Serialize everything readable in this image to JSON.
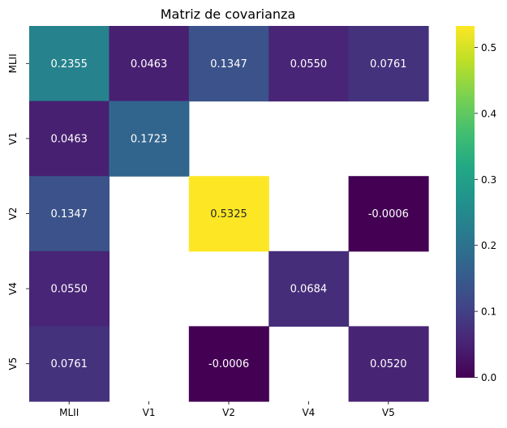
{
  "chart_data": {
    "type": "heatmap",
    "title": "Matriz de covarianza",
    "row_labels": [
      "MLII",
      "V1",
      "V2",
      "V4",
      "V5"
    ],
    "col_labels": [
      "MLII",
      "V1",
      "V2",
      "V4",
      "V5"
    ],
    "values": [
      [
        0.2355,
        0.0463,
        0.1347,
        0.055,
        0.0761
      ],
      [
        0.0463,
        0.1723,
        null,
        null,
        null
      ],
      [
        0.1347,
        null,
        0.5325,
        null,
        -0.0006
      ],
      [
        0.055,
        null,
        null,
        0.0684,
        null
      ],
      [
        0.0761,
        null,
        -0.0006,
        null,
        0.052
      ]
    ],
    "cell_labels": [
      [
        "0.2355",
        "0.0463",
        "0.1347",
        "0.0550",
        "0.0761"
      ],
      [
        "0.0463",
        "0.1723",
        null,
        null,
        null
      ],
      [
        "0.1347",
        null,
        "0.5325",
        null,
        "-0.0006"
      ],
      [
        "0.0550",
        null,
        null,
        "0.0684",
        null
      ],
      [
        "0.0761",
        null,
        "-0.0006",
        null,
        "0.0520"
      ]
    ],
    "colorscale": "viridis",
    "vmin": -0.0006,
    "vmax": 0.5325,
    "colorbar_ticks": [
      0.0,
      0.1,
      0.2,
      0.3,
      0.4,
      0.5
    ],
    "colorbar_tick_labels": [
      "0.0",
      "0.1",
      "0.2",
      "0.3",
      "0.4",
      "0.5"
    ],
    "missing_cells": "blank (white)"
  }
}
